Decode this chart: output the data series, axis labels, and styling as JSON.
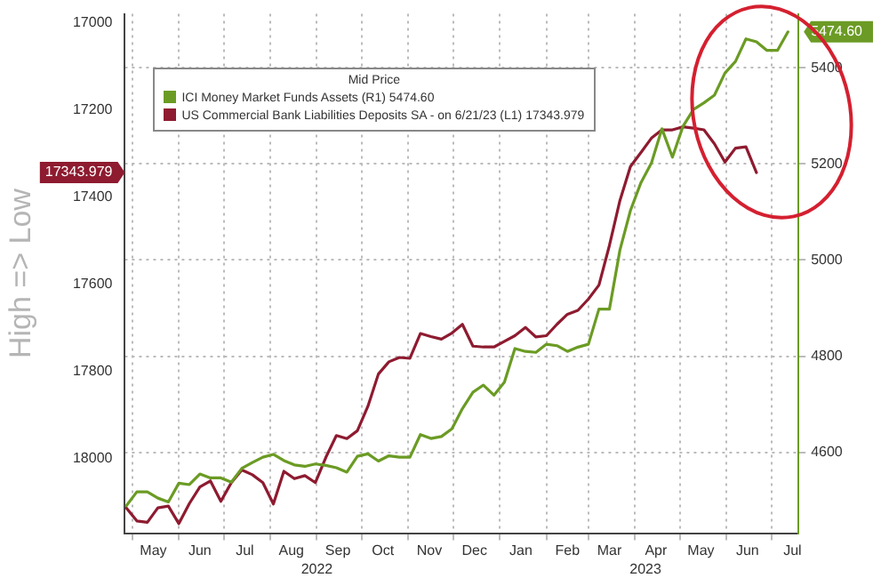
{
  "chart_data": {
    "type": "line",
    "ylabel": "High => Low",
    "legend": "top left",
    "legend_title": "Mid Price",
    "grid": true,
    "x": [
      "2022-04-27",
      "2022-05-04",
      "2022-05-11",
      "2022-05-18",
      "2022-05-25",
      "2022-06-01",
      "2022-06-08",
      "2022-06-15",
      "2022-06-22",
      "2022-06-29",
      "2022-07-06",
      "2022-07-13",
      "2022-07-20",
      "2022-07-27",
      "2022-08-03",
      "2022-08-10",
      "2022-08-17",
      "2022-08-24",
      "2022-08-31",
      "2022-09-07",
      "2022-09-14",
      "2022-09-21",
      "2022-09-28",
      "2022-10-05",
      "2022-10-12",
      "2022-10-19",
      "2022-10-26",
      "2022-11-02",
      "2022-11-09",
      "2022-11-16",
      "2022-11-23",
      "2022-11-30",
      "2022-12-07",
      "2022-12-14",
      "2022-12-21",
      "2022-12-28",
      "2023-01-04",
      "2023-01-11",
      "2023-01-18",
      "2023-01-25",
      "2023-02-01",
      "2023-02-08",
      "2023-02-15",
      "2023-02-22",
      "2023-03-01",
      "2023-03-08",
      "2023-03-15",
      "2023-03-22",
      "2023-03-29",
      "2023-04-05",
      "2023-04-12",
      "2023-04-19",
      "2023-04-26",
      "2023-05-03",
      "2023-05-10",
      "2023-05-17",
      "2023-05-24",
      "2023-05-31",
      "2023-06-07",
      "2023-06-14",
      "2023-06-21",
      "2023-06-28",
      "2023-07-05",
      "2023-07-12"
    ],
    "series": [
      {
        "name": "ICI Money Market Funds Assets (R1) 5474.60",
        "color": "#6b9b24",
        "axis": "y2",
        "values": [
          4489,
          4518,
          4518,
          4505,
          4497,
          4536,
          4533,
          4555,
          4547,
          4547,
          4538,
          4567,
          4579,
          4590,
          4596,
          4583,
          4574,
          4571,
          4576,
          4573,
          4568,
          4559,
          4592,
          4597,
          4582,
          4593,
          4590,
          4590,
          4637,
          4629,
          4633,
          4649,
          4691,
          4725,
          4740,
          4719,
          4746,
          4816,
          4810,
          4808,
          4825,
          4822,
          4810,
          4819,
          4825,
          4898,
          4898,
          5021,
          5103,
          5161,
          5202,
          5273,
          5214,
          5278,
          5313,
          5327,
          5343,
          5389,
          5413,
          5460,
          5454,
          5436,
          5436,
          5474.6
        ]
      },
      {
        "name": "US Commercial Bank Liabilities Deposits SA - on 6/21/23 (L1) 17343.979",
        "color": "#8e1b30",
        "axis": "y",
        "values": [
          18113,
          18143,
          18146,
          18113,
          18109,
          18149,
          18103,
          18065,
          18051,
          18098,
          18055,
          18026,
          18037,
          18055,
          18104,
          18029,
          18046,
          18039,
          18055,
          17997,
          17947,
          17954,
          17936,
          17880,
          17806,
          17778,
          17768,
          17770,
          17713,
          17720,
          17726,
          17712,
          17692,
          17742,
          17744,
          17744,
          17731,
          17718,
          17699,
          17721,
          17718,
          17692,
          17669,
          17660,
          17634,
          17602,
          17511,
          17408,
          17330,
          17298,
          17265,
          17246,
          17246,
          17239,
          17242,
          17246,
          17278,
          17320,
          17288,
          17285,
          17343.979,
          null,
          null,
          null
        ]
      }
    ],
    "xlim": [
      "2022-04-26",
      "2023-07-19"
    ],
    "xticks": [
      {
        "value": "2022-05-01",
        "label": null
      },
      {
        "value": "2022-05-15",
        "label": "May"
      },
      {
        "value": "2022-06-01",
        "label": null
      },
      {
        "value": "2022-06-15",
        "label": "Jun"
      },
      {
        "value": "2022-07-01",
        "label": null
      },
      {
        "value": "2022-07-15",
        "label": "Jul"
      },
      {
        "value": "2022-08-01",
        "label": null
      },
      {
        "value": "2022-08-15",
        "label": "Aug"
      },
      {
        "value": "2022-09-01",
        "label": null
      },
      {
        "value": "2022-09-15",
        "label": "Sep"
      },
      {
        "value": "2022-10-01",
        "label": null
      },
      {
        "value": "2022-10-15",
        "label": "Oct"
      },
      {
        "value": "2022-11-01",
        "label": null
      },
      {
        "value": "2022-11-15",
        "label": "Nov"
      },
      {
        "value": "2022-12-01",
        "label": null
      },
      {
        "value": "2022-12-15",
        "label": "Dec"
      },
      {
        "value": "2023-01-01",
        "label": null
      },
      {
        "value": "2023-01-15",
        "label": "Jan"
      },
      {
        "value": "2023-02-01",
        "label": null
      },
      {
        "value": "2023-02-15",
        "label": "Feb"
      },
      {
        "value": "2023-03-01",
        "label": null
      },
      {
        "value": "2023-03-15",
        "label": "Mar"
      },
      {
        "value": "2023-04-01",
        "label": null
      },
      {
        "value": "2023-04-15",
        "label": "Apr"
      },
      {
        "value": "2023-05-01",
        "label": null
      },
      {
        "value": "2023-05-15",
        "label": "May"
      },
      {
        "value": "2023-06-01",
        "label": null
      },
      {
        "value": "2023-06-15",
        "label": "Jun"
      },
      {
        "value": "2023-07-01",
        "label": null
      },
      {
        "value": "2023-07-15",
        "label": "Jul"
      }
    ],
    "x2lim": [
      "2022-04-26",
      "2023-07-19"
    ],
    "x2ticks": [
      {
        "value": "2022-09-01",
        "label": "2022"
      },
      {
        "value": "2023-04-08",
        "label": "2023"
      }
    ],
    "ylim": [
      18171,
      16980
    ],
    "yticks": [
      17000,
      17200,
      17343.979,
      17400,
      17600,
      17800,
      18000
    ],
    "y2lim": [
      4432,
      5512
    ],
    "y2ticks": [
      4600,
      4800,
      5000,
      5200,
      5400,
      {
        "value": 5474.6,
        "label": "5474.60"
      }
    ]
  }
}
